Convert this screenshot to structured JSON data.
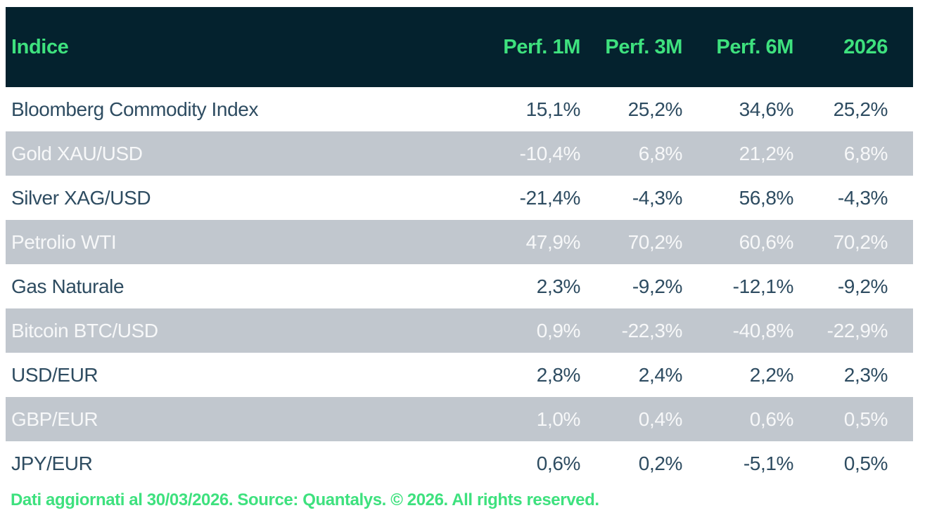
{
  "chart_data": {
    "type": "table",
    "columns": [
      "Indice",
      "Perf. 1M",
      "Perf. 3M",
      "Perf. 6M",
      "2026"
    ],
    "rows": [
      {
        "label": "Bloomberg Commodity Index",
        "values": [
          "15,1%",
          "25,2%",
          "34,6%",
          "25,2%"
        ]
      },
      {
        "label": "Gold XAU/USD",
        "values": [
          "-10,4%",
          "6,8%",
          "21,2%",
          "6,8%"
        ]
      },
      {
        "label": "Silver XAG/USD",
        "values": [
          "-21,4%",
          "-4,3%",
          "56,8%",
          "-4,3%"
        ]
      },
      {
        "label": "Petrolio WTI",
        "values": [
          "47,9%",
          "70,2%",
          "60,6%",
          "70,2%"
        ]
      },
      {
        "label": "Gas Naturale",
        "values": [
          "2,3%",
          "-9,2%",
          "-12,1%",
          "-9,2%"
        ]
      },
      {
        "label": "Bitcoin BTC/USD",
        "values": [
          "0,9%",
          "-22,3%",
          "-40,8%",
          "-22,9%"
        ]
      },
      {
        "label": "USD/EUR",
        "values": [
          "2,8%",
          "2,4%",
          "2,2%",
          "2,3%"
        ]
      },
      {
        "label": "GBP/EUR",
        "values": [
          "1,0%",
          "0,4%",
          "0,6%",
          "0,5%"
        ]
      },
      {
        "label": "JPY/EUR",
        "values": [
          "0,6%",
          "0,2%",
          "-5,1%",
          "0,5%"
        ]
      }
    ],
    "source_note": "Dati aggiornati al 30/03/2026. Source: Quantalys. © 2026. All rights reserved.",
    "layout_hints": {
      "striping": "alternating white and gray rows, header dark",
      "numeric_alignment": "right",
      "decimal_separator": ","
    }
  },
  "colors": {
    "header_bg": "#04222e",
    "accent_green": "#3ee17e",
    "row_alt_bg": "#c1c7ce",
    "row_bg": "#ffffff",
    "text_dark": "#2e4c61",
    "text_light": "#f7f8f9"
  }
}
